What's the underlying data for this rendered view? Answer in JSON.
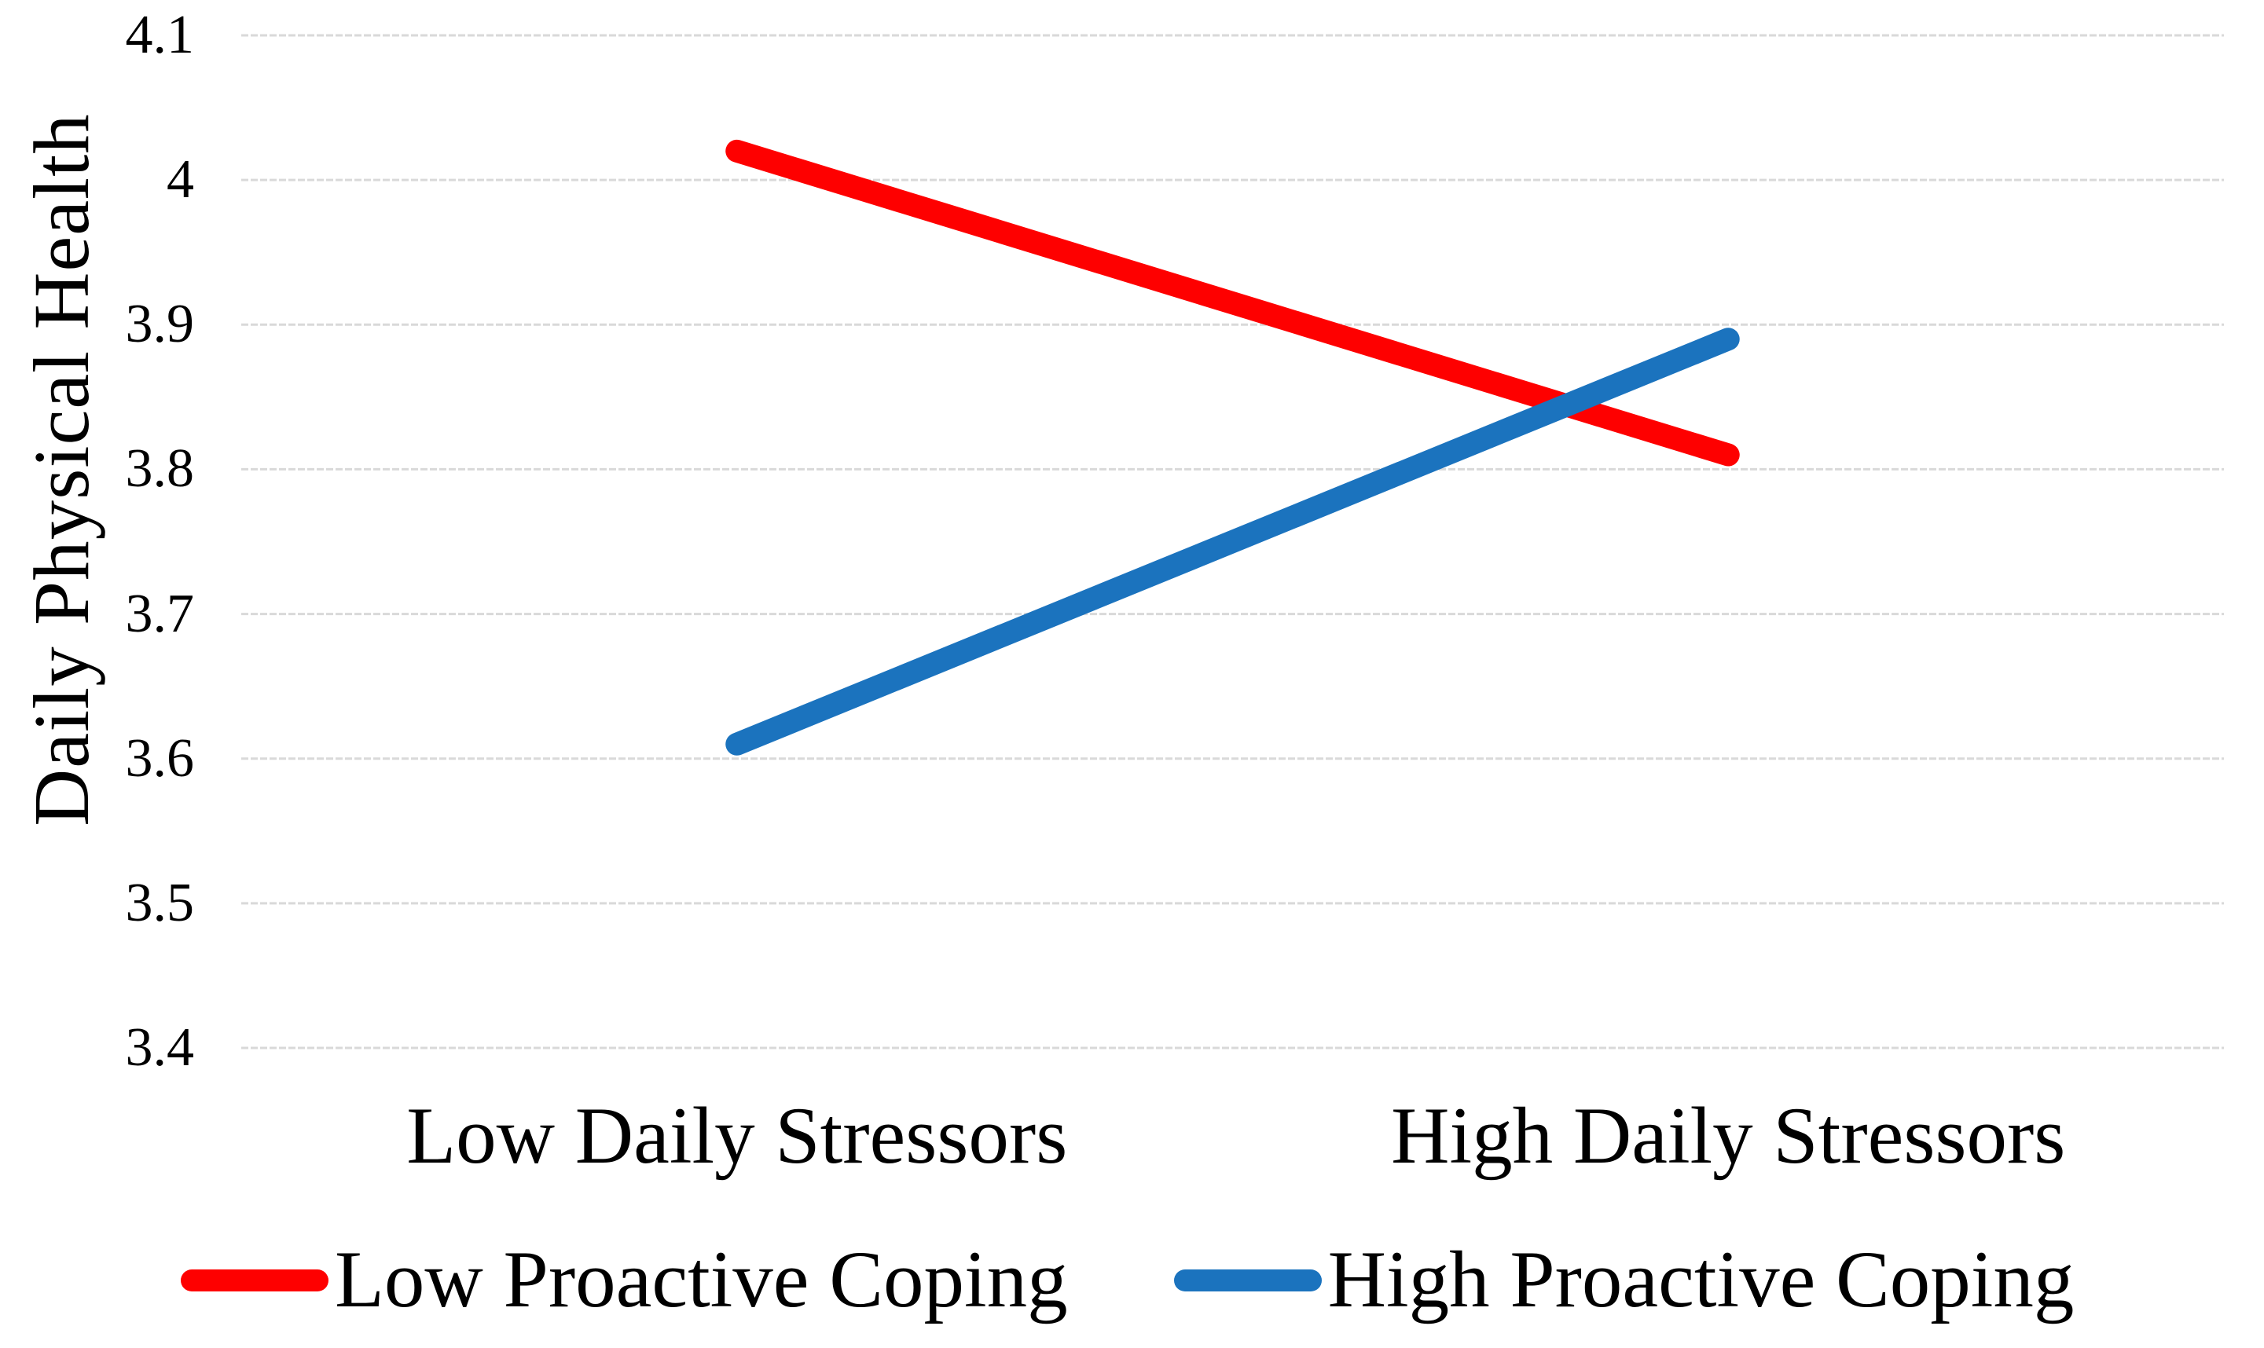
{
  "chart_data": {
    "type": "line",
    "categories": [
      "Low Daily Stressors",
      "High Daily Stressors"
    ],
    "series": [
      {
        "name": "Low Proactive Coping",
        "color": "#FE0000",
        "values": [
          4.02,
          3.81
        ]
      },
      {
        "name": "High Proactive Coping",
        "color": "#1B73BE",
        "values": [
          3.61,
          3.89
        ]
      }
    ],
    "title": "",
    "xlabel": "",
    "ylabel": "Daily Physical Health",
    "ylim": [
      3.4,
      4.1
    ],
    "ytick_step": 0.1,
    "yticks": [
      "4.1",
      "4",
      "3.9",
      "3.8",
      "3.7",
      "3.6",
      "3.5",
      "3.4"
    ],
    "grid": true,
    "gridline_color": "#D9D9D9",
    "text_color": "#000000",
    "background_color": "#FFFFFF",
    "line_width": 29,
    "legend_position": "bottom"
  }
}
